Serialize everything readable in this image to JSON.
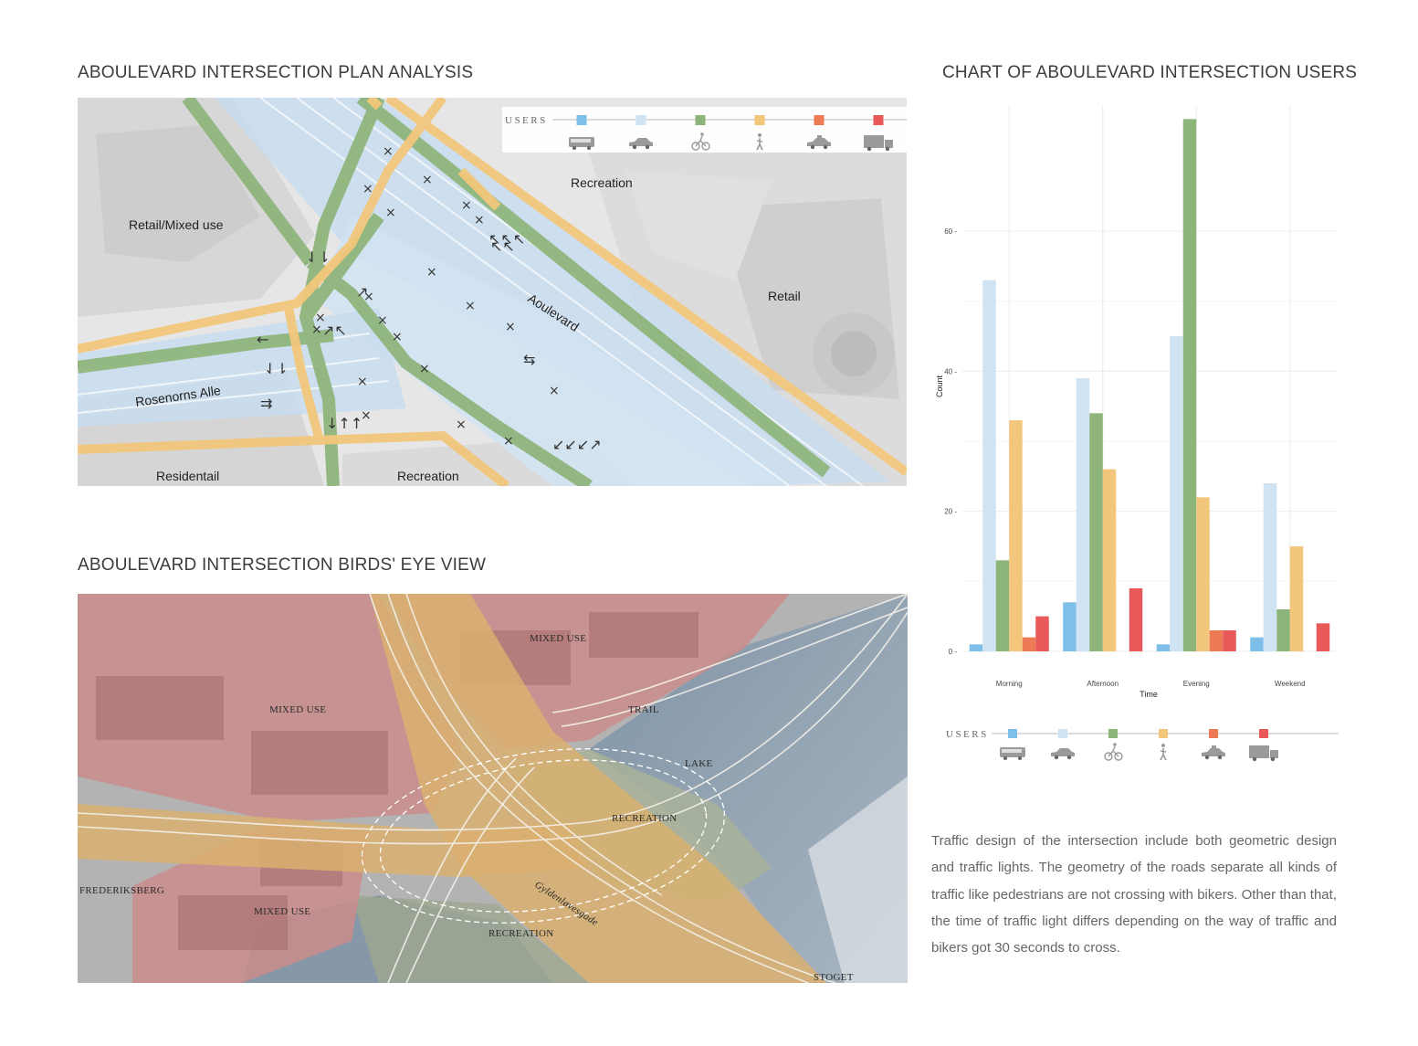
{
  "titles": {
    "plan": "ABOULEVARD INTERSECTION PLAN ANALYSIS",
    "birds_eye": "ABOULEVARD INTERSECTION BIRDS' EYE VIEW",
    "chart": "CHART OF ABOULEVARD INTERSECTION USERS"
  },
  "legend": {
    "title": "USERS",
    "items": [
      {
        "icon": "bus-icon",
        "color": "#7dbfe8"
      },
      {
        "icon": "car-icon",
        "color": "#cfe3f3"
      },
      {
        "icon": "bicycle-icon",
        "color": "#8db479"
      },
      {
        "icon": "pedestrian-icon",
        "color": "#f2c77c"
      },
      {
        "icon": "taxi-icon",
        "color": "#ee7a55"
      },
      {
        "icon": "truck-icon",
        "color": "#e85a5a"
      }
    ]
  },
  "plan_map": {
    "labels": {
      "retail_mixed": "Retail/Mixed use",
      "recreation_top": "Recreation",
      "retail": "Retail",
      "street_boulevard": "Aoulevard",
      "street_rosenorns": "Rosenorns Alle",
      "residential": "Residentail",
      "recreation_bottom": "Recreation"
    }
  },
  "birds_eye": {
    "labels": {
      "mixed_use_top": "MIXED USE",
      "mixed_use_left": "MIXED USE",
      "mixed_use_bottom": "MIXED USE",
      "trail": "TRAIL",
      "lake": "LAKE",
      "recreation_mid": "RECREATION",
      "recreation_bottom": "RECREATION",
      "frederiksberg": "FREDERIKSBERG",
      "stoget": "STOGET",
      "street": "Gyldenløvesgade"
    }
  },
  "chart_data": {
    "type": "bar",
    "xlabel": "Time",
    "ylabel": "Count",
    "categories": [
      "Morning",
      "Afternoon",
      "Evening",
      "Weekend"
    ],
    "ylim": [
      0,
      78
    ],
    "yticks": [
      0,
      20,
      40,
      60
    ],
    "grid": true,
    "legend_placement": "bottom",
    "series": [
      {
        "color": "#7dbfe8",
        "values": [
          1,
          7,
          1,
          2
        ]
      },
      {
        "color": "#cfe3f3",
        "values": [
          53,
          39,
          45,
          24
        ]
      },
      {
        "color": "#8db479",
        "values": [
          13,
          34,
          76,
          6
        ]
      },
      {
        "color": "#f2c77c",
        "values": [
          33,
          26,
          22,
          15
        ]
      },
      {
        "color": "#ee7a55",
        "values": [
          2,
          0,
          3,
          0
        ]
      },
      {
        "color": "#e85a5a",
        "values": [
          5,
          9,
          3,
          4
        ]
      }
    ]
  },
  "description": "Traffic design of the intersection include both geometric design and traffic lights. The geometry of the roads separate all kinds of traffic like pedestrians are not crossing with bikers. Other than that, the time of traffic light differs depending on the way of traffic and bikers got 30 seconds to cross."
}
